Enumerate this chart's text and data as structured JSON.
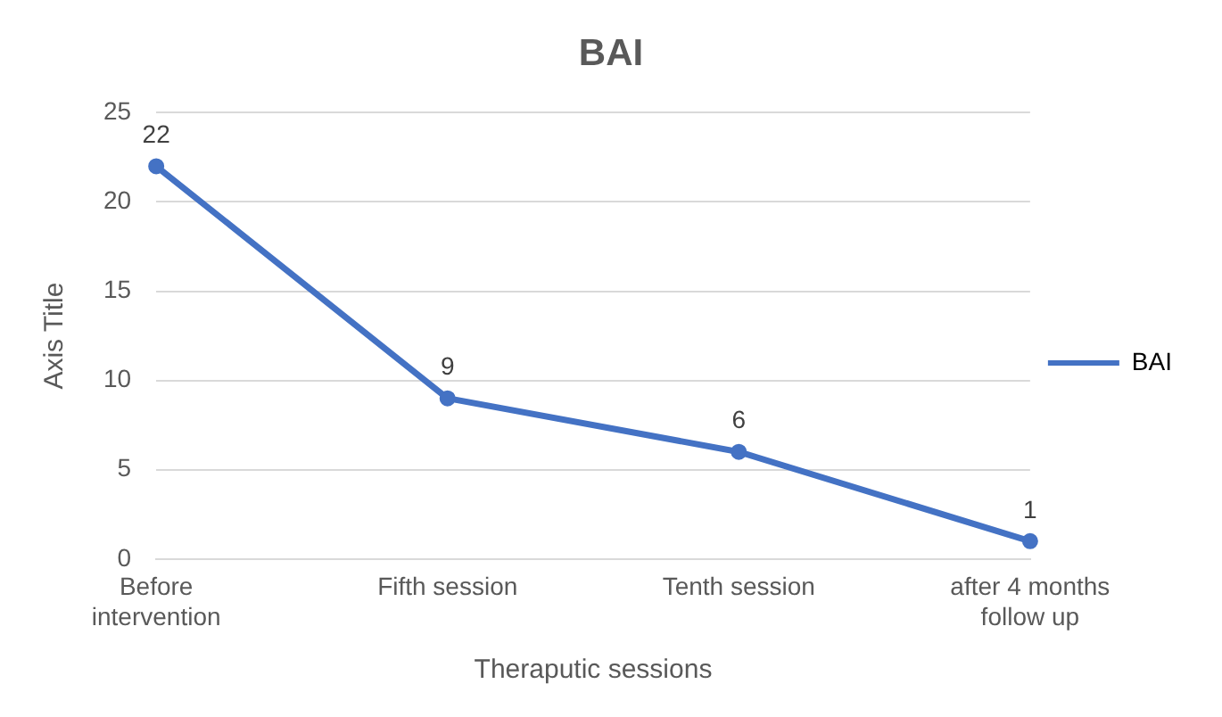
{
  "chart_data": {
    "type": "line",
    "title": "BAI",
    "xlabel": "Theraputic sessions",
    "ylabel": "Axis Title",
    "categories": [
      "Before intervention",
      "Fifth session",
      "Tenth session",
      "after 4 months follow up"
    ],
    "series": [
      {
        "name": "BAI",
        "color": "#4472c4",
        "values": [
          22,
          9,
          6,
          1
        ]
      }
    ],
    "ylim": [
      0,
      25
    ],
    "yticks": [
      0,
      5,
      10,
      15,
      20,
      25
    ],
    "grid": "y",
    "legend": "right",
    "marker": "circle",
    "line_style": "solid",
    "data_labels": true
  }
}
